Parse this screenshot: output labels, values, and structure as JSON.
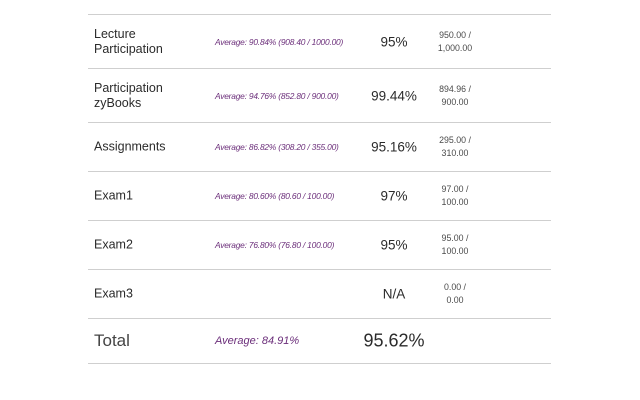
{
  "grades": {
    "rows": [
      {
        "name": "Lecture Participation",
        "average": "Average: 90.84% (908.40 / 1000.00)",
        "percent": "95%",
        "points_earned": "950.00 /",
        "points_possible": "1,000.00"
      },
      {
        "name": "Participation zyBooks",
        "average": "Average: 94.76% (852.80 / 900.00)",
        "percent": "99.44%",
        "points_earned": "894.96 /",
        "points_possible": "900.00"
      },
      {
        "name": "Assignments",
        "average": "Average: 86.82% (308.20 / 355.00)",
        "percent": "95.16%",
        "points_earned": "295.00 /",
        "points_possible": "310.00"
      },
      {
        "name": "Exam1",
        "average": "Average: 80.60% (80.60 / 100.00)",
        "percent": "97%",
        "points_earned": "97.00 /",
        "points_possible": "100.00"
      },
      {
        "name": "Exam2",
        "average": "Average: 76.80% (76.80 / 100.00)",
        "percent": "95%",
        "points_earned": "95.00 /",
        "points_possible": "100.00"
      },
      {
        "name": "Exam3",
        "average": "",
        "percent": "N/A",
        "points_earned": "0.00 /",
        "points_possible": "0.00"
      }
    ],
    "total": {
      "name": "Total",
      "average": "Average: 84.91%",
      "percent": "95.62%"
    },
    "colors": {
      "average_text": "#6b2e7a",
      "divider": "#cfcfcf"
    }
  }
}
